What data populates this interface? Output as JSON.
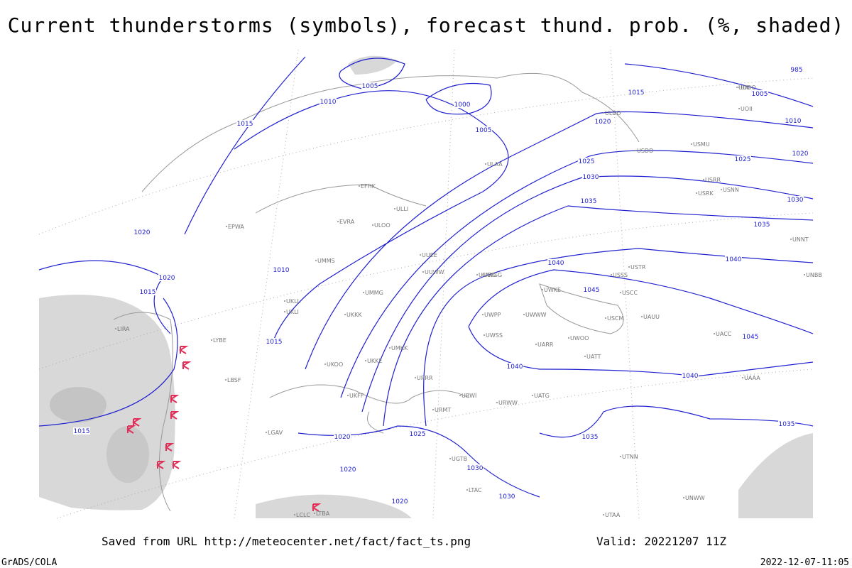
{
  "header": {
    "title": "Current thunderstorms (symbols), forecast thund. prob. (%, shaded)"
  },
  "map": {
    "isobar_labels": [
      1005,
      1010,
      1000,
      1005,
      1015,
      1015,
      1020,
      1025,
      1030,
      1035,
      1020,
      1010,
      1020,
      1015,
      1015,
      1040,
      1040,
      1045,
      1040,
      1040,
      1020,
      1025,
      1035,
      1020,
      1030,
      1020,
      1030,
      1015,
      985,
      1005,
      1010,
      1020,
      1025,
      1030,
      1035,
      1045,
      1035
    ],
    "station_labels": [
      "ULAA",
      "EFHK",
      "ULLI",
      "EVRA",
      "ULOO",
      "UMMS",
      "UMMG",
      "UKLL",
      "UKLI",
      "UKKK",
      "UKKE",
      "UUEE",
      "UUWW",
      "UUOO",
      "UWPP",
      "UWWW",
      "UWKE",
      "UWOO",
      "UWGG",
      "UWSS",
      "URRR",
      "URWW",
      "URWI",
      "UATG",
      "UATT",
      "UACC",
      "UAAA",
      "USSS",
      "USCC",
      "USRR",
      "USRK",
      "USNN",
      "USTR",
      "UNNT",
      "UNBB",
      "UTNN",
      "UTAA",
      "UNWW",
      "UIII",
      "URMT",
      "UGTB",
      "USCM",
      "UAUU",
      "UARR",
      "UOOO",
      "UOII",
      "ULDD",
      "USDD",
      "USMU",
      "LIRA",
      "LYBE",
      "LBSF",
      "LGAV",
      "LTBA",
      "LTAC",
      "LCLC",
      "UKFF",
      "UKOO",
      "UMKK",
      "EPWA"
    ]
  },
  "footer": {
    "source": "Saved from URL http://meteocenter.net/fact/fact_ts.png",
    "valid": "Valid: 20221207 11Z",
    "software": "GrADS/COLA",
    "timestamp": "2022-12-07-11:05"
  }
}
